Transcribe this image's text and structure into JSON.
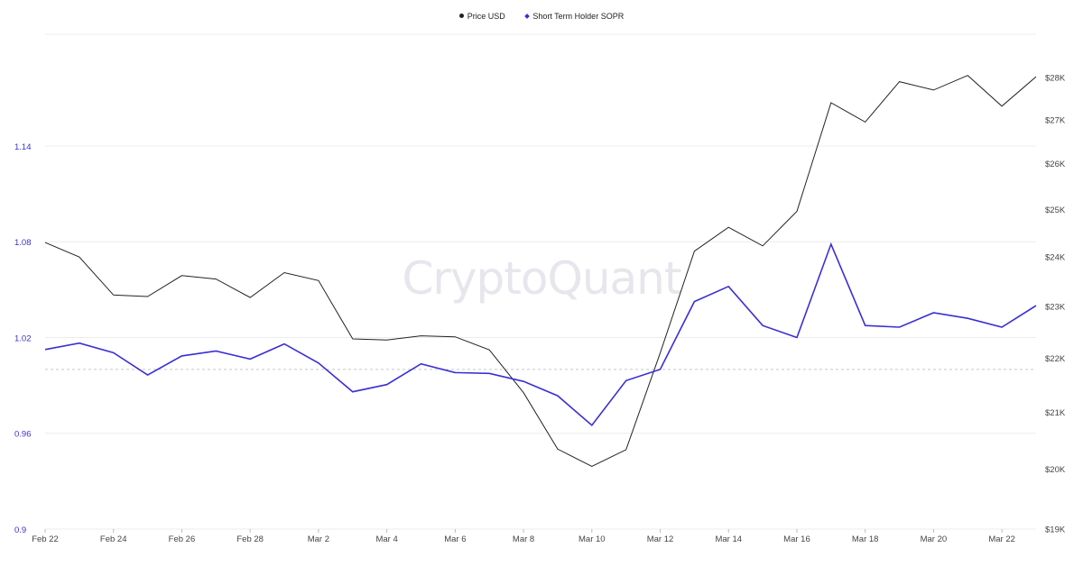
{
  "watermark": "CryptoQuant",
  "colors": {
    "price": "#222222",
    "sopr": "#3a2fd4",
    "grid": "#ececec",
    "baseline": "#c8c8c8"
  },
  "chart_data": {
    "type": "line",
    "legend": [
      {
        "name": "Price USD",
        "marker": "circle",
        "color": "#222222"
      },
      {
        "name": "Short Term Holder SOPR",
        "marker": "diamond",
        "color": "#3a2fd4"
      }
    ],
    "x": [
      "Feb 22",
      "Feb 23",
      "Feb 24",
      "Feb 25",
      "Feb 26",
      "Feb 27",
      "Feb 28",
      "Mar 1",
      "Mar 2",
      "Mar 3",
      "Mar 4",
      "Mar 5",
      "Mar 6",
      "Mar 7",
      "Mar 8",
      "Mar 9",
      "Mar 10",
      "Mar 11",
      "Mar 12",
      "Mar 13",
      "Mar 14",
      "Mar 15",
      "Mar 16",
      "Mar 17",
      "Mar 18",
      "Mar 19",
      "Mar 20",
      "Mar 21",
      "Mar 22",
      "Mar 23"
    ],
    "x_tick_labels": [
      "Feb 22",
      "Feb 24",
      "Feb 26",
      "Feb 28",
      "Mar 2",
      "Mar 4",
      "Mar 6",
      "Mar 8",
      "Mar 10",
      "Mar 12",
      "Mar 14",
      "Mar 16",
      "Mar 18",
      "Mar 20",
      "Mar 22"
    ],
    "left_axis": {
      "ticks": [
        0.9,
        0.96,
        1.02,
        1.08,
        1.14
      ],
      "tick_labels": [
        "0.9",
        "0.96",
        "1.02",
        "1.08",
        "1.14"
      ],
      "range": [
        0.9,
        1.21
      ]
    },
    "right_axis": {
      "scale": "log",
      "ticks": [
        19000,
        20000,
        21000,
        22000,
        23000,
        24000,
        25000,
        26000,
        27000,
        28000
      ],
      "tick_labels": [
        "$19K",
        "$20K",
        "$21K",
        "$22K",
        "$23K",
        "$24K",
        "$25K",
        "$26K",
        "$27K",
        "$28K"
      ],
      "range": [
        19000,
        28000
      ]
    },
    "reference_line": {
      "value": 1.0,
      "axis": "left",
      "style": "dashed"
    },
    "series": [
      {
        "name": "Price USD",
        "axis": "right",
        "values": [
          24300,
          24000,
          23230,
          23200,
          23620,
          23550,
          23180,
          23680,
          23520,
          22370,
          22350,
          22430,
          22410,
          22160,
          21360,
          20350,
          20050,
          20340,
          22100,
          24120,
          24620,
          24230,
          24960,
          27400,
          26950,
          27900,
          27700,
          28050,
          27320,
          28020
        ]
      },
      {
        "name": "Short Term Holder SOPR",
        "axis": "left",
        "values": [
          1.0125,
          1.0165,
          1.0105,
          0.9965,
          1.0085,
          1.0115,
          1.0065,
          1.016,
          1.004,
          0.986,
          0.9905,
          1.0035,
          0.998,
          0.9975,
          0.9925,
          0.9835,
          0.965,
          0.993,
          1.0,
          1.0425,
          1.052,
          1.0275,
          1.02,
          1.0785,
          1.0275,
          1.0265,
          1.0355,
          1.032,
          1.0265,
          1.04
        ]
      }
    ]
  }
}
